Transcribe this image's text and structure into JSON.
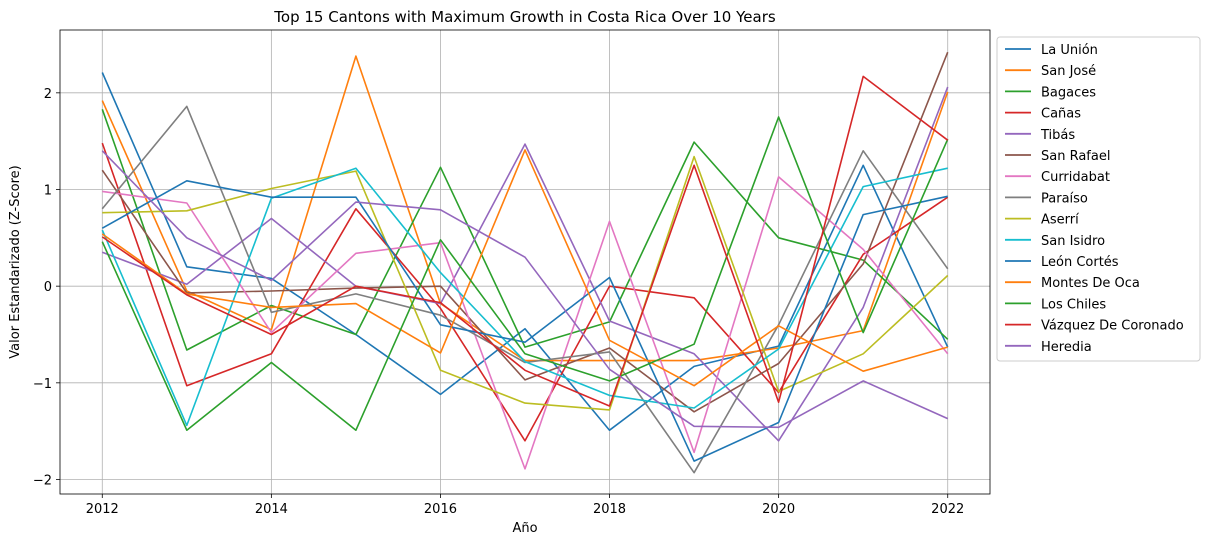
{
  "chart_data": {
    "type": "line",
    "title": "Top 15 Cantons with Maximum Growth in Costa Rica Over 10 Years",
    "xlabel": "Año",
    "ylabel": "Valor Estandarizado (Z-Score)",
    "xlim": [
      2011.5,
      2022.5
    ],
    "ylim": [
      -2.15,
      2.65
    ],
    "xticks": [
      2012,
      2014,
      2016,
      2018,
      2020,
      2022
    ],
    "yticks": [
      -2,
      -1,
      0,
      1,
      2
    ],
    "x": [
      2012,
      2013,
      2014,
      2015,
      2016,
      2017,
      2018,
      2019,
      2020,
      2021,
      2022
    ],
    "grid": true,
    "legend_position": "outside right",
    "series": [
      {
        "name": "La Unión",
        "color": "#1f77b4",
        "values": [
          2.21,
          0.2,
          0.08,
          -0.5,
          -1.12,
          -0.44,
          -1.49,
          -0.83,
          -0.62,
          1.25,
          -0.63
        ]
      },
      {
        "name": "San José",
        "color": "#ff7f0e",
        "values": [
          1.92,
          -0.05,
          -0.45,
          2.38,
          -0.18,
          -0.77,
          -0.77,
          -0.77,
          -0.64,
          -0.46,
          2.01
        ]
      },
      {
        "name": "Bagaces",
        "color": "#2ca02c",
        "values": [
          1.83,
          -0.66,
          -0.2,
          -0.5,
          1.23,
          -0.63,
          -0.37,
          1.49,
          0.5,
          0.27,
          -0.55
        ]
      },
      {
        "name": "Cañas",
        "color": "#d62728",
        "values": [
          1.48,
          -1.03,
          -0.7,
          0.8,
          -0.23,
          -1.6,
          0.0,
          -0.12,
          -1.1,
          0.33,
          0.92
        ]
      },
      {
        "name": "Tibás",
        "color": "#9467bd",
        "values": [
          0.35,
          0.02,
          0.7,
          0.0,
          -0.18,
          1.47,
          -0.36,
          -0.7,
          -1.6,
          -0.22,
          2.06
        ]
      },
      {
        "name": "San Rafael",
        "color": "#8c564b",
        "values": [
          1.2,
          -0.07,
          -0.05,
          -0.02,
          0.0,
          -0.97,
          -0.64,
          -1.3,
          -0.8,
          0.23,
          2.42
        ]
      },
      {
        "name": "Curridabat",
        "color": "#e377c2",
        "values": [
          0.98,
          0.86,
          -0.48,
          0.34,
          0.45,
          -1.89,
          0.67,
          -1.72,
          1.13,
          0.38,
          -0.7
        ]
      },
      {
        "name": "Paraíso",
        "color": "#7f7f7f",
        "values": [
          0.8,
          1.86,
          -0.27,
          -0.08,
          -0.3,
          -0.79,
          -0.68,
          -1.93,
          -0.4,
          1.4,
          0.18
        ]
      },
      {
        "name": "Aserrí",
        "color": "#bcbd22",
        "values": [
          0.76,
          0.78,
          1.01,
          1.19,
          -0.87,
          -1.21,
          -1.28,
          1.34,
          -1.09,
          -0.7,
          0.11
        ]
      },
      {
        "name": "San Isidro",
        "color": "#17becf",
        "values": [
          0.58,
          -1.44,
          0.91,
          1.22,
          0.14,
          -0.78,
          -1.13,
          -1.26,
          -0.65,
          1.03,
          1.22
        ]
      },
      {
        "name": "León Cortés",
        "color": "#1f77b4",
        "values": [
          0.6,
          1.09,
          0.92,
          0.92,
          -0.4,
          -0.58,
          0.09,
          -1.81,
          -1.41,
          0.74,
          0.93
        ]
      },
      {
        "name": "Montes De Oca",
        "color": "#ff7f0e",
        "values": [
          0.54,
          -0.08,
          -0.22,
          -0.18,
          -0.69,
          1.41,
          -0.56,
          -1.03,
          -0.41,
          -0.88,
          -0.63
        ]
      },
      {
        "name": "Los Chiles",
        "color": "#2ca02c",
        "values": [
          0.46,
          -1.49,
          -0.79,
          -1.49,
          0.48,
          -0.7,
          -0.98,
          -0.6,
          1.75,
          -0.48,
          1.52
        ]
      },
      {
        "name": "Vázquez De Coronado",
        "color": "#d62728",
        "values": [
          0.51,
          -0.09,
          -0.5,
          0.0,
          -0.17,
          -0.87,
          -1.24,
          1.25,
          -1.2,
          2.17,
          1.51
        ]
      },
      {
        "name": "Heredia",
        "color": "#9467bd",
        "values": [
          1.4,
          0.5,
          0.06,
          0.87,
          0.79,
          0.3,
          -0.86,
          -1.45,
          -1.46,
          -0.98,
          -1.37
        ]
      }
    ]
  }
}
